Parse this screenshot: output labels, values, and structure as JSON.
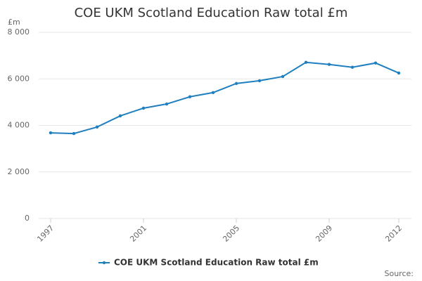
{
  "chart_data": {
    "type": "line",
    "title": "COE UKM Scotland Education Raw total £m",
    "y_label": "£m",
    "x": [
      1997,
      1998,
      1999,
      2000,
      2001,
      2002,
      2003,
      2004,
      2005,
      2006,
      2007,
      2008,
      2009,
      2010,
      2011,
      2012
    ],
    "series": [
      {
        "name": "COE UKM Scotland Education Raw total £m",
        "color": "#1f7fbf",
        "values": [
          3680,
          3650,
          3930,
          4410,
          4740,
          4920,
          5230,
          5410,
          5800,
          5920,
          6100,
          6710,
          6620,
          6500,
          6680,
          6250
        ]
      }
    ],
    "xlim": [
      1997,
      2012
    ],
    "xticks": [
      1997,
      2001,
      2005,
      2009,
      2012
    ],
    "ylim": [
      0,
      8000
    ],
    "yticks": [
      0,
      {
        "value": 2000,
        "label": "2 000"
      },
      {
        "value": 4000,
        "label": "4 000"
      },
      {
        "value": 6000,
        "label": "6 000"
      },
      {
        "value": 8000,
        "label": "8 000"
      }
    ],
    "grid": true,
    "legend": "bottom",
    "source": "Source:"
  }
}
